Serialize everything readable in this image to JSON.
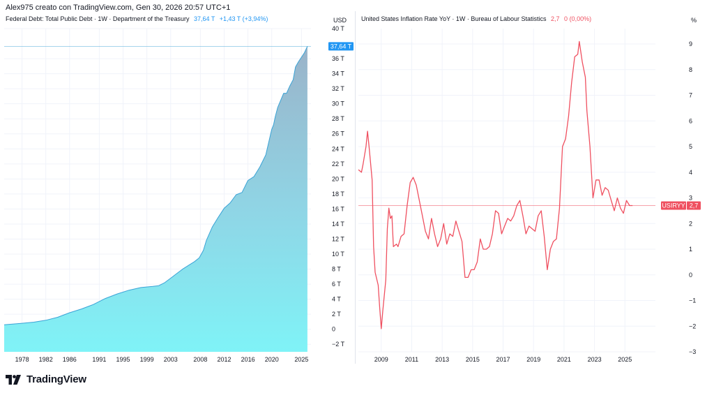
{
  "header": {
    "text": "Alex975 creato con TradingView.com, Gen 30, 2026 20:57 UTC+1"
  },
  "brand": {
    "name": "TradingView"
  },
  "colors": {
    "debt_line": "#3aa3d6",
    "debt_fill_top": "#9ab3c9",
    "debt_fill_bottom": "#7ff3f7",
    "inflation_line": "#ef5060"
  },
  "left": {
    "title": "Federal Debt: Total Public Debt · 1W · Department of the Treasury",
    "value": "37,64 T",
    "change": "+1,43 T",
    "change_pct": "(+3,94%)",
    "unit": "USD",
    "price_label": "37,64 T"
  },
  "right": {
    "title": "United States Inflation Rate YoY · 1W · Bureau of Labour Statistics",
    "value": "2,7",
    "change": "0",
    "change_pct": "(0,00%)",
    "unit": "%",
    "symbol_label": "USIRYY",
    "price_label": "2,7"
  },
  "chart_data": [
    {
      "type": "area",
      "title": "Federal Debt: Total Public Debt · 1W · Department of the Treasury",
      "x_unit": "year",
      "y_unit": "trillion USD",
      "xlim": [
        1975,
        2026.6
      ],
      "ylim": [
        -3,
        40
      ],
      "x_tick_labels": [
        "1978",
        "1982",
        "1986",
        "1991",
        "1995",
        "1999",
        "2003",
        "2008",
        "2012",
        "2016",
        "2020",
        "2025"
      ],
      "y_tick_labels": [
        "−2 T",
        "0",
        "2 T",
        "4 T",
        "6 T",
        "8 T",
        "10 T",
        "12 T",
        "14 T",
        "16 T",
        "18 T",
        "20 T",
        "22 T",
        "24 T",
        "26 T",
        "28 T",
        "30 T",
        "32 T",
        "34 T",
        "36 T",
        "40 T"
      ],
      "series": [
        {
          "x": [
            1975,
            1978,
            1980,
            1982,
            1984,
            1986,
            1988,
            1990,
            1992,
            1994,
            1996,
            1998,
            2000,
            2001,
            2002,
            2003,
            2004,
            2005,
            2006,
            2007,
            2007.8,
            2008.5,
            2009,
            2010,
            2011,
            2012,
            2013,
            2014,
            2015,
            2016,
            2017,
            2018,
            2019,
            2020,
            2020.3,
            2020.6,
            2021,
            2022,
            2022.5,
            2023,
            2023.6,
            2024,
            2024.5,
            2025,
            2025.5,
            2026
          ],
          "y": [
            0.6,
            0.8,
            0.95,
            1.2,
            1.6,
            2.2,
            2.7,
            3.3,
            4.1,
            4.7,
            5.2,
            5.55,
            5.7,
            5.8,
            6.2,
            6.8,
            7.4,
            8.0,
            8.5,
            9.0,
            9.5,
            10.5,
            11.8,
            13.6,
            14.9,
            16.1,
            16.8,
            17.9,
            18.2,
            19.8,
            20.3,
            21.6,
            23.2,
            26.6,
            27.2,
            28.3,
            29.5,
            31.4,
            31.4,
            32.3,
            33.2,
            34.9,
            35.6,
            36.2,
            36.8,
            37.64
          ]
        }
      ]
    },
    {
      "type": "line",
      "title": "United States Inflation Rate YoY · 1W · Bureau of Labour Statistics",
      "x_unit": "year",
      "y_unit": "%",
      "xlim": [
        2008,
        2027.5
      ],
      "ylim": [
        -3,
        9.6
      ],
      "x_tick_labels": [
        "2009",
        "2011",
        "2013",
        "2015",
        "2017",
        "2019",
        "2021",
        "2023",
        "2025"
      ],
      "y_tick_labels": [
        "−3",
        "−2",
        "−1",
        "0",
        "1",
        "2",
        "3",
        "4",
        "5",
        "6",
        "7",
        "8",
        "9"
      ],
      "series": [
        {
          "x": [
            2008.0,
            2008.2,
            2008.3,
            2008.5,
            2008.6,
            2008.7,
            2008.9,
            2009.0,
            2009.1,
            2009.3,
            2009.4,
            2009.5,
            2009.6,
            2009.8,
            2009.9,
            2010.0,
            2010.1,
            2010.2,
            2010.3,
            2010.5,
            2010.6,
            2010.8,
            2011.0,
            2011.2,
            2011.4,
            2011.6,
            2011.8,
            2012.0,
            2012.2,
            2012.4,
            2012.6,
            2012.8,
            2013.0,
            2013.2,
            2013.4,
            2013.6,
            2013.8,
            2014.0,
            2014.2,
            2014.4,
            2014.6,
            2014.8,
            2015.0,
            2015.2,
            2015.4,
            2015.6,
            2015.8,
            2016.0,
            2016.2,
            2016.4,
            2016.6,
            2016.8,
            2017.0,
            2017.2,
            2017.4,
            2017.6,
            2017.8,
            2018.0,
            2018.2,
            2018.4,
            2018.6,
            2018.8,
            2019.0,
            2019.2,
            2019.4,
            2019.6,
            2019.8,
            2020.0,
            2020.2,
            2020.4,
            2020.6,
            2020.8,
            2021.0,
            2021.2,
            2021.4,
            2021.6,
            2021.8,
            2022.0,
            2022.2,
            2022.4,
            2022.5,
            2022.7,
            2022.9,
            2023.0,
            2023.2,
            2023.4,
            2023.6,
            2023.8,
            2024.0,
            2024.2,
            2024.4,
            2024.6,
            2024.8,
            2025.0,
            2025.2,
            2025.4,
            2025.6,
            2025.8,
            2026.0
          ],
          "y": [
            4.1,
            4.0,
            4.3,
            5.0,
            5.6,
            5.0,
            3.7,
            1.1,
            0.1,
            -0.4,
            -1.3,
            -2.1,
            -1.4,
            -0.2,
            1.8,
            2.6,
            2.2,
            2.3,
            1.1,
            1.2,
            1.1,
            1.5,
            1.6,
            2.7,
            3.6,
            3.8,
            3.5,
            2.9,
            2.3,
            1.7,
            1.4,
            2.2,
            1.6,
            1.1,
            1.4,
            2.0,
            1.2,
            1.6,
            1.5,
            2.1,
            1.7,
            1.3,
            -0.1,
            -0.1,
            0.2,
            0.2,
            0.5,
            1.4,
            1.0,
            1.0,
            1.1,
            1.6,
            2.5,
            2.4,
            1.6,
            1.9,
            2.2,
            2.1,
            2.3,
            2.7,
            2.9,
            2.3,
            1.6,
            1.9,
            1.8,
            1.7,
            2.3,
            2.5,
            1.5,
            0.2,
            1.0,
            1.3,
            1.4,
            2.6,
            5.0,
            5.3,
            6.2,
            7.5,
            8.5,
            8.6,
            9.1,
            8.3,
            7.7,
            6.4,
            5.0,
            3.0,
            3.7,
            3.7,
            3.1,
            3.4,
            3.3,
            2.9,
            2.5,
            3.0,
            2.6,
            2.4,
            2.9,
            2.7,
            2.7
          ]
        }
      ]
    }
  ]
}
